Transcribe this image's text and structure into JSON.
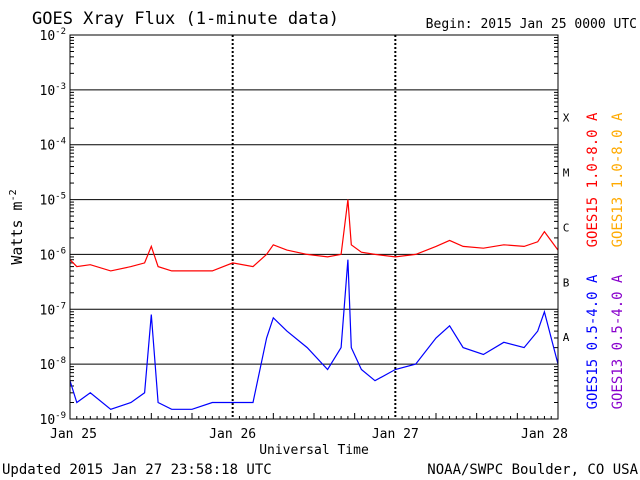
{
  "chart_data": {
    "type": "line",
    "title": "GOES Xray Flux (1-minute data)",
    "begin_text": "Begin:  2015 Jan 25 0000 UTC",
    "xlabel": "Universal Time",
    "ylabel_base": "Watts m",
    "ylabel_sup": "-2",
    "y_scale": "log",
    "ylim": [
      1e-09,
      0.01
    ],
    "y_ticks": [
      {
        "base": "10",
        "exp": "-2",
        "value": 0.01
      },
      {
        "base": "10",
        "exp": "-3",
        "value": 0.001
      },
      {
        "base": "10",
        "exp": "-4",
        "value": 0.0001
      },
      {
        "base": "10",
        "exp": "-5",
        "value": 1e-05
      },
      {
        "base": "10",
        "exp": "-6",
        "value": 1e-06
      },
      {
        "base": "10",
        "exp": "-7",
        "value": 1e-07
      },
      {
        "base": "10",
        "exp": "-8",
        "value": 1e-08
      },
      {
        "base": "10",
        "exp": "-9",
        "value": 1e-09
      }
    ],
    "xlim": [
      "2015-01-25 00:00",
      "2015-01-28 00:00"
    ],
    "x_ticks": [
      {
        "label": "Jan 25",
        "time": "2015-01-25 00:00"
      },
      {
        "label": "Jan 26",
        "time": "2015-01-26 00:00"
      },
      {
        "label": "Jan 27",
        "time": "2015-01-27 00:00"
      },
      {
        "label": "Jan 28",
        "time": "2015-01-28 00:00"
      }
    ],
    "flare_classes": [
      {
        "label": "X",
        "value": 0.0001
      },
      {
        "label": "M",
        "value": 1e-05
      },
      {
        "label": "C",
        "value": 1e-06
      },
      {
        "label": "B",
        "value": 1e-07
      },
      {
        "label": "A",
        "value": 1e-08
      }
    ],
    "legend_placement": "right",
    "series": [
      {
        "name": "GOES15 1.0-8.0 A",
        "color": "#ff0000",
        "band": "long",
        "x": [
          "2015-01-25 00:00",
          "2015-01-25 01:00",
          "2015-01-25 03:00",
          "2015-01-25 06:00",
          "2015-01-25 09:00",
          "2015-01-25 11:00",
          "2015-01-25 12:00",
          "2015-01-25 13:00",
          "2015-01-25 15:00",
          "2015-01-25 18:00",
          "2015-01-25 21:00",
          "2015-01-26 00:00",
          "2015-01-26 03:00",
          "2015-01-26 05:00",
          "2015-01-26 06:00",
          "2015-01-26 08:00",
          "2015-01-26 11:00",
          "2015-01-26 14:00",
          "2015-01-26 16:00",
          "2015-01-26 17:00",
          "2015-01-26 17:30",
          "2015-01-26 19:00",
          "2015-01-26 21:00",
          "2015-01-27 00:00",
          "2015-01-27 03:00",
          "2015-01-27 06:00",
          "2015-01-27 08:00",
          "2015-01-27 10:00",
          "2015-01-27 13:00",
          "2015-01-27 16:00",
          "2015-01-27 19:00",
          "2015-01-27 21:00",
          "2015-01-27 22:00",
          "2015-01-27 24:00"
        ],
        "values": [
          8e-07,
          6e-07,
          6.5e-07,
          5e-07,
          6e-07,
          7e-07,
          1.4e-06,
          6e-07,
          5e-07,
          5e-07,
          5e-07,
          7e-07,
          6e-07,
          1e-06,
          1.5e-06,
          1.2e-06,
          1e-06,
          9e-07,
          1e-06,
          1e-05,
          1.5e-06,
          1.1e-06,
          1e-06,
          9e-07,
          1e-06,
          1.4e-06,
          1.8e-06,
          1.4e-06,
          1.3e-06,
          1.5e-06,
          1.4e-06,
          1.7e-06,
          2.6e-06,
          1.2e-06
        ]
      },
      {
        "name": "GOES13 1.0-8.0 A",
        "color": "#ffaa00",
        "band": "long",
        "x": [],
        "values": []
      },
      {
        "name": "GOES15 0.5-4.0 A",
        "color": "#0000ff",
        "band": "short",
        "x": [
          "2015-01-25 00:00",
          "2015-01-25 01:00",
          "2015-01-25 03:00",
          "2015-01-25 06:00",
          "2015-01-25 09:00",
          "2015-01-25 11:00",
          "2015-01-25 12:00",
          "2015-01-25 13:00",
          "2015-01-25 15:00",
          "2015-01-25 18:00",
          "2015-01-25 21:00",
          "2015-01-26 00:00",
          "2015-01-26 03:00",
          "2015-01-26 05:00",
          "2015-01-26 06:00",
          "2015-01-26 08:00",
          "2015-01-26 11:00",
          "2015-01-26 14:00",
          "2015-01-26 16:00",
          "2015-01-26 17:00",
          "2015-01-26 17:30",
          "2015-01-26 19:00",
          "2015-01-26 21:00",
          "2015-01-27 00:00",
          "2015-01-27 03:00",
          "2015-01-27 06:00",
          "2015-01-27 08:00",
          "2015-01-27 10:00",
          "2015-01-27 13:00",
          "2015-01-27 16:00",
          "2015-01-27 19:00",
          "2015-01-27 21:00",
          "2015-01-27 22:00",
          "2015-01-27 24:00"
        ],
        "values": [
          5e-09,
          2e-09,
          3e-09,
          1.5e-09,
          2e-09,
          3e-09,
          8e-08,
          2e-09,
          1.5e-09,
          1.5e-09,
          2e-09,
          2e-09,
          2e-09,
          3e-08,
          7e-08,
          4e-08,
          2e-08,
          8e-09,
          2e-08,
          8e-07,
          2e-08,
          8e-09,
          5e-09,
          8e-09,
          1e-08,
          3e-08,
          5e-08,
          2e-08,
          1.5e-08,
          2.5e-08,
          2e-08,
          4e-08,
          9e-08,
          1e-08
        ]
      },
      {
        "name": "GOES13 0.5-4.0 A",
        "color": "#8800cc",
        "band": "short",
        "x": [],
        "values": []
      }
    ]
  },
  "footer": {
    "updated": "Updated 2015 Jan 27 23:58:18 UTC",
    "credit": "NOAA/SWPC Boulder, CO USA"
  }
}
